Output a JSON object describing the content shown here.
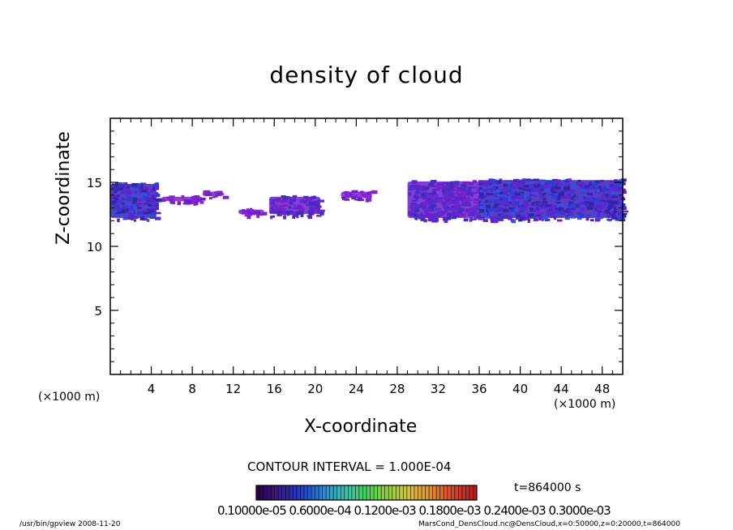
{
  "chart_data": {
    "type": "heatmap",
    "title": "density of cloud",
    "xlabel": "X-coordinate",
    "ylabel": "Z-coordinate",
    "x_unit_left": "(×1000 m)",
    "x_unit_right": "(×1000 m)",
    "xlim": [
      0,
      50
    ],
    "ylim": [
      0,
      20
    ],
    "x_ticks": [
      "4",
      "8",
      "12",
      "16",
      "20",
      "24",
      "28",
      "32",
      "36",
      "40",
      "44",
      "48"
    ],
    "y_ticks": [
      "5",
      "10",
      "15"
    ],
    "x_ticks_values": [
      4,
      8,
      12,
      16,
      20,
      24,
      28,
      32,
      36,
      40,
      44,
      48
    ],
    "y_ticks_values": [
      5,
      10,
      15
    ],
    "cloud_regions": [
      {
        "x": [
          0,
          4.5
        ],
        "z": [
          12.1,
          15.0
        ],
        "density": "high"
      },
      {
        "x": [
          5,
          9
        ],
        "z": [
          13.4,
          14.0
        ],
        "density": "low"
      },
      {
        "x": [
          9,
          11
        ],
        "z": [
          13.8,
          14.4
        ],
        "density": "low"
      },
      {
        "x": [
          12.5,
          15
        ],
        "z": [
          12.4,
          13.0
        ],
        "density": "low"
      },
      {
        "x": [
          15.5,
          20.5
        ],
        "z": [
          12.4,
          14.0
        ],
        "density": "medium"
      },
      {
        "x": [
          22.5,
          25.5
        ],
        "z": [
          13.7,
          14.4
        ],
        "density": "low"
      },
      {
        "x": [
          29,
          36
        ],
        "z": [
          12.1,
          15.2
        ],
        "density": "medium"
      },
      {
        "x": [
          36,
          50
        ],
        "z": [
          12.1,
          15.3
        ],
        "density": "high"
      }
    ],
    "contour_interval": "CONTOUR INTERVAL = 1.000E-04",
    "time_label": "t=864000 s",
    "colorbar_ticks": "0.10000e-05 0.6000e-04 0.1200e-03 0.1800e-03 0.2400e-03 0.3000e-03",
    "colorbar_colors": [
      "#2a004a",
      "#3b1a8c",
      "#1f3fc9",
      "#2a8ad8",
      "#39c1b0",
      "#46d35a",
      "#9ad03c",
      "#d8c13a",
      "#e08a2e",
      "#d8442a",
      "#b01f1f"
    ],
    "footer_left": "/usr/bin/gpview   2008-11-20",
    "footer_right": "MarsCond_DensCloud.nc@DensCloud,x=0:50000,z=0:20000,t=864000"
  }
}
